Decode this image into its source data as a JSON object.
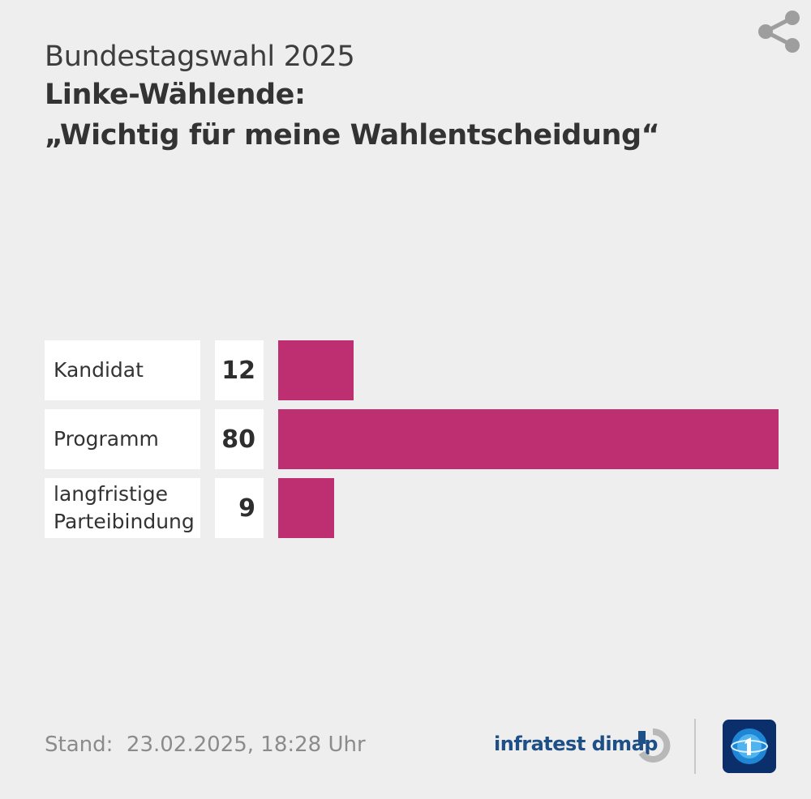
{
  "header": {
    "supertitle": "Bundestagswahl 2025",
    "title_line1": "Linke-Wählende:",
    "title_line2": "„Wichtig für meine Wahlentscheidung“"
  },
  "chart_data": {
    "type": "bar",
    "orientation": "horizontal",
    "categories": [
      "Kandidat",
      "Programm",
      "langfristige Parteibindung"
    ],
    "category_lines": [
      [
        "Kandidat"
      ],
      [
        "Programm"
      ],
      [
        "langfristige",
        "Parteibindung"
      ]
    ],
    "values": [
      12,
      80,
      9
    ],
    "xlim": [
      0,
      80
    ],
    "bar_color": "#bd2f70",
    "grid": false,
    "legend": "none"
  },
  "footer": {
    "stand_label": "Stand:",
    "stand_value": "23.02.2025, 18:28 Uhr"
  },
  "brand": {
    "source": "infratest dimap",
    "source_color": "#1e4f86",
    "broadcaster_icon": "tagesschau-logo-icon"
  },
  "icons": {
    "share": "share-icon"
  },
  "colors": {
    "background": "#efeeef",
    "bar": "#bd2f70"
  }
}
